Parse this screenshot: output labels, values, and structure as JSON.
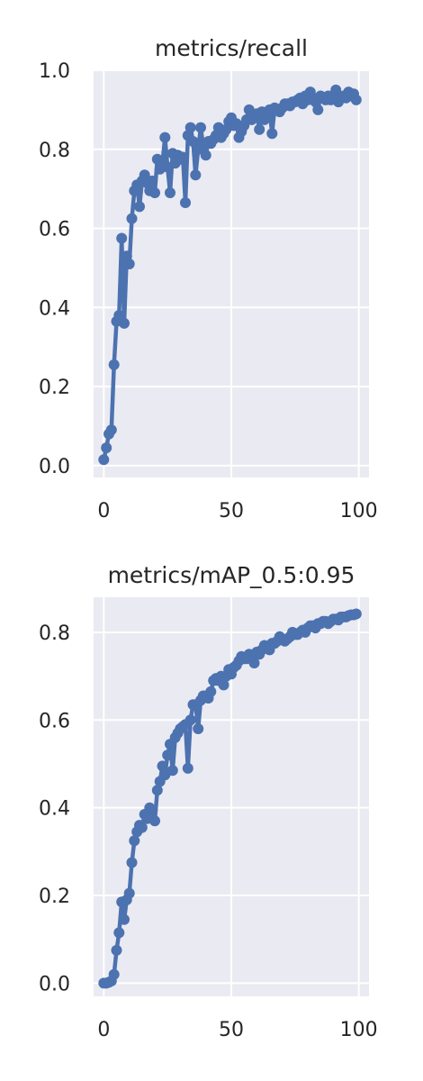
{
  "chart_data": [
    {
      "type": "line",
      "title": "metrics/recall",
      "xlabel": "",
      "ylabel": "",
      "xlim": [
        -4,
        104
      ],
      "ylim": [
        -0.03,
        1.0
      ],
      "xticks": [
        "0",
        "50",
        "100"
      ],
      "yticks": [
        "0.0",
        "0.2",
        "0.4",
        "0.6",
        "0.8",
        "1.0"
      ],
      "grid": true,
      "series": [
        {
          "name": "recall",
          "color": "#4c72b0",
          "x": [
            0,
            1,
            2,
            3,
            4,
            5,
            6,
            7,
            8,
            9,
            10,
            11,
            12,
            13,
            14,
            15,
            16,
            17,
            18,
            19,
            20,
            21,
            22,
            23,
            24,
            25,
            26,
            27,
            28,
            29,
            30,
            31,
            32,
            33,
            34,
            35,
            36,
            37,
            38,
            39,
            40,
            41,
            42,
            43,
            44,
            45,
            46,
            47,
            48,
            49,
            50,
            51,
            52,
            53,
            54,
            55,
            56,
            57,
            58,
            59,
            60,
            61,
            62,
            63,
            64,
            65,
            66,
            67,
            68,
            69,
            70,
            71,
            72,
            73,
            74,
            75,
            76,
            77,
            78,
            79,
            80,
            81,
            82,
            83,
            84,
            85,
            86,
            87,
            88,
            89,
            90,
            91,
            92,
            93,
            94,
            95,
            96,
            97,
            98,
            99
          ],
          "y": [
            0.015,
            0.045,
            0.08,
            0.09,
            0.255,
            0.365,
            0.38,
            0.575,
            0.36,
            0.53,
            0.51,
            0.625,
            0.695,
            0.71,
            0.655,
            0.72,
            0.735,
            0.715,
            0.695,
            0.72,
            0.69,
            0.775,
            0.75,
            0.765,
            0.83,
            0.755,
            0.69,
            0.79,
            0.765,
            0.785,
            0.775,
            0.78,
            0.665,
            0.835,
            0.855,
            0.82,
            0.735,
            0.8,
            0.855,
            0.81,
            0.785,
            0.82,
            0.815,
            0.825,
            0.835,
            0.855,
            0.83,
            0.84,
            0.85,
            0.87,
            0.88,
            0.86,
            0.865,
            0.83,
            0.845,
            0.86,
            0.875,
            0.9,
            0.875,
            0.885,
            0.89,
            0.85,
            0.895,
            0.875,
            0.885,
            0.9,
            0.84,
            0.905,
            0.9,
            0.895,
            0.905,
            0.915,
            0.915,
            0.91,
            0.92,
            0.92,
            0.925,
            0.93,
            0.915,
            0.935,
            0.925,
            0.945,
            0.93,
            0.92,
            0.9,
            0.935,
            0.93,
            0.925,
            0.935,
            0.925,
            0.93,
            0.95,
            0.92,
            0.93,
            0.935,
            0.93,
            0.945,
            0.935,
            0.94,
            0.925
          ]
        }
      ]
    },
    {
      "type": "line",
      "title": "metrics/mAP_0.5:0.95",
      "xlabel": "",
      "ylabel": "",
      "xlim": [
        -4,
        104
      ],
      "ylim": [
        -0.03,
        0.88
      ],
      "xticks": [
        "0",
        "50",
        "100"
      ],
      "yticks": [
        "0.0",
        "0.2",
        "0.4",
        "0.6",
        "0.8"
      ],
      "grid": true,
      "series": [
        {
          "name": "mAP_0.5:0.95",
          "color": "#4c72b0",
          "x": [
            0,
            1,
            2,
            3,
            4,
            5,
            6,
            7,
            8,
            9,
            10,
            11,
            12,
            13,
            14,
            15,
            16,
            17,
            18,
            19,
            20,
            21,
            22,
            23,
            24,
            25,
            26,
            27,
            28,
            29,
            30,
            31,
            32,
            33,
            34,
            35,
            36,
            37,
            38,
            39,
            40,
            41,
            42,
            43,
            44,
            45,
            46,
            47,
            48,
            49,
            50,
            51,
            52,
            53,
            54,
            55,
            56,
            57,
            58,
            59,
            60,
            61,
            62,
            63,
            64,
            65,
            66,
            67,
            68,
            69,
            70,
            71,
            72,
            73,
            74,
            75,
            76,
            77,
            78,
            79,
            80,
            81,
            82,
            83,
            84,
            85,
            86,
            87,
            88,
            89,
            90,
            91,
            92,
            93,
            94,
            95,
            96,
            97,
            98,
            99
          ],
          "y": [
            0.0,
            0.0,
            0.002,
            0.005,
            0.02,
            0.075,
            0.115,
            0.185,
            0.145,
            0.19,
            0.205,
            0.275,
            0.325,
            0.345,
            0.36,
            0.355,
            0.385,
            0.375,
            0.4,
            0.395,
            0.37,
            0.44,
            0.46,
            0.495,
            0.475,
            0.52,
            0.545,
            0.485,
            0.56,
            0.57,
            0.58,
            0.585,
            0.59,
            0.49,
            0.6,
            0.635,
            0.635,
            0.58,
            0.645,
            0.655,
            0.655,
            0.65,
            0.665,
            0.69,
            0.695,
            0.69,
            0.7,
            0.68,
            0.7,
            0.715,
            0.705,
            0.72,
            0.725,
            0.735,
            0.745,
            0.74,
            0.74,
            0.75,
            0.745,
            0.73,
            0.755,
            0.75,
            0.76,
            0.77,
            0.765,
            0.76,
            0.775,
            0.775,
            0.78,
            0.79,
            0.785,
            0.78,
            0.785,
            0.79,
            0.8,
            0.795,
            0.795,
            0.8,
            0.805,
            0.8,
            0.81,
            0.815,
            0.815,
            0.81,
            0.82,
            0.82,
            0.825,
            0.825,
            0.82,
            0.825,
            0.83,
            0.83,
            0.828,
            0.835,
            0.835,
            0.835,
            0.838,
            0.84,
            0.84,
            0.842
          ]
        }
      ]
    }
  ]
}
